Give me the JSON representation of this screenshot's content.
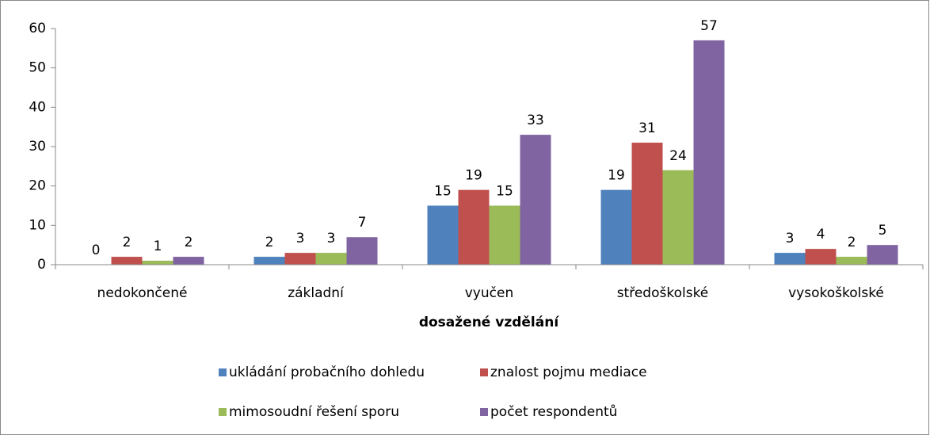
{
  "chart_data": {
    "type": "bar",
    "xlabel": "dosažené vzdělání",
    "categories": [
      "nedokončené",
      "základní",
      "vyučen",
      "středoškolské",
      "vysokoškolské"
    ],
    "series": [
      {
        "name": "ukládání probačního dohledu",
        "color": "#4f81bd",
        "values": [
          0,
          2,
          15,
          19,
          3
        ]
      },
      {
        "name": "znalost pojmu mediace",
        "color": "#c0504d",
        "values": [
          2,
          3,
          19,
          31,
          4
        ]
      },
      {
        "name": "mimosoudní řešení sporu",
        "color": "#9bbb59",
        "values": [
          1,
          3,
          15,
          24,
          2
        ]
      },
      {
        "name": "počet respondentů",
        "color": "#8064a2",
        "values": [
          2,
          7,
          33,
          57,
          5
        ]
      }
    ],
    "ylim": [
      0,
      60
    ],
    "yticks": [
      0,
      10,
      20,
      30,
      40,
      50,
      60
    ],
    "grid": false,
    "legend": "bottom"
  }
}
